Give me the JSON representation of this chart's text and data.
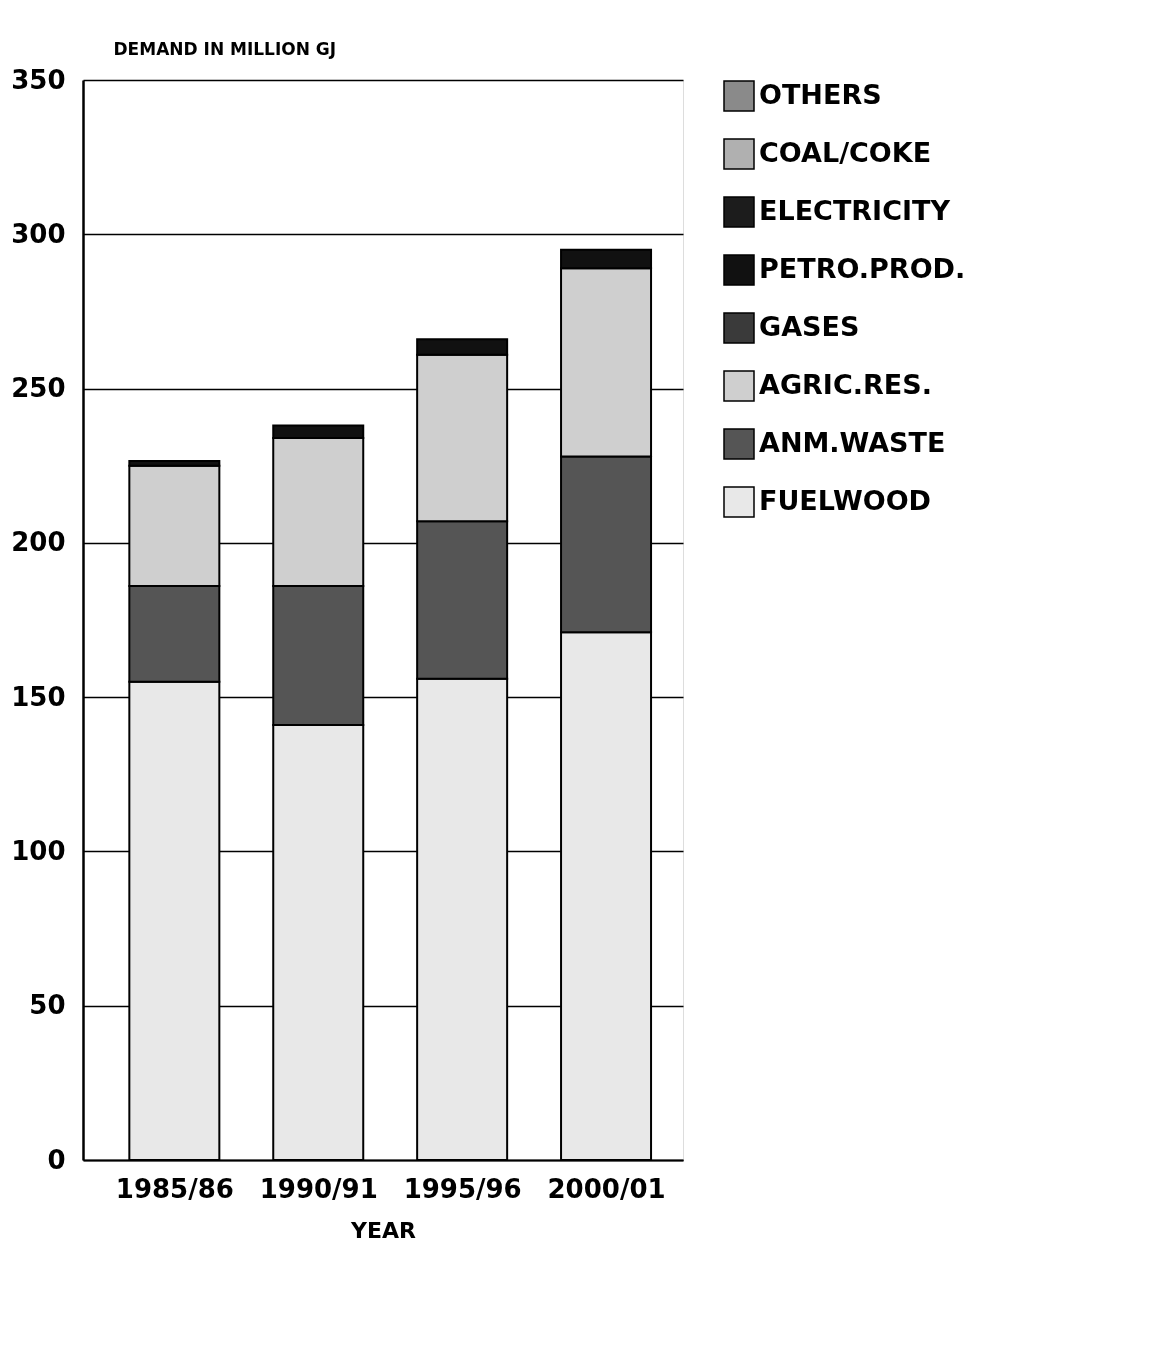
{
  "chart_data": {
    "type": "bar",
    "stacked": true,
    "xlabel": "YEAR",
    "ylabel": "DEMAND IN MILLION GJ",
    "categories": [
      "1985/86",
      "1990/91",
      "1995/96",
      "2000/01"
    ],
    "series": [
      {
        "name": "FUELWOOD",
        "color": "#e8e8e8",
        "values": [
          155,
          141,
          156,
          171
        ]
      },
      {
        "name": "ANM.WASTE",
        "color": "#555555",
        "values": [
          31,
          45,
          51,
          57
        ]
      },
      {
        "name": "AGRIC.RES.",
        "color": "#cfcfcf",
        "values": [
          39,
          48,
          54,
          61
        ]
      },
      {
        "name": "GASES",
        "color": "#3a3a3a",
        "values": [
          null,
          null,
          null,
          null
        ]
      },
      {
        "name": "PETRO.PROD.",
        "color": "#111111",
        "values": [
          1.5,
          4,
          5,
          6
        ]
      },
      {
        "name": "ELECTRICITY",
        "color": "#1c1c1c",
        "values": [
          null,
          null,
          null,
          null
        ]
      },
      {
        "name": "COAL/COKE",
        "color": "#b0b0b0",
        "values": [
          null,
          null,
          null,
          null
        ]
      },
      {
        "name": "OTHERS",
        "color": "#8a8a8a",
        "values": [
          null,
          null,
          null,
          null
        ]
      }
    ],
    "ylim": [
      0,
      350
    ],
    "yticks": [
      0,
      50,
      100,
      150,
      200,
      250,
      300,
      350
    ],
    "grid": "y",
    "legend": "top right"
  }
}
